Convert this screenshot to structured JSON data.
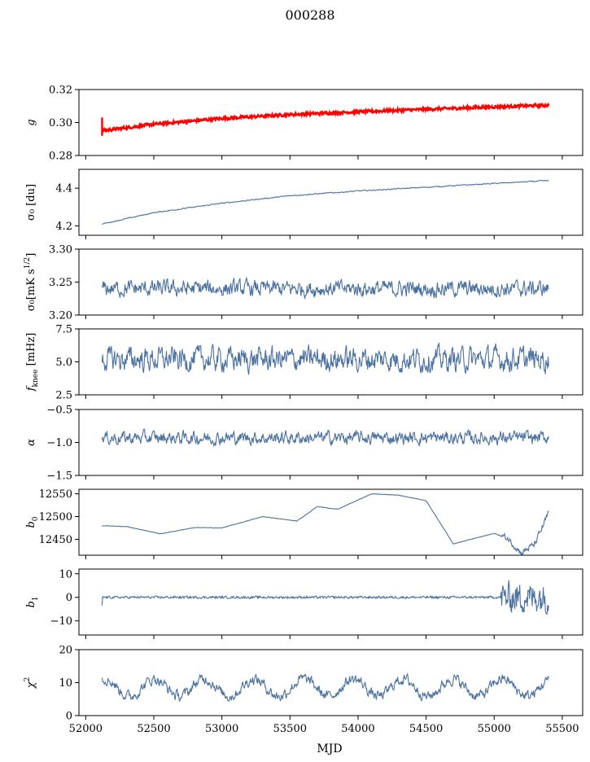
{
  "figure": {
    "title": "000288"
  },
  "colors": {
    "series": "#4c72a0",
    "overlay": "#ff0000",
    "axis": "#000000"
  },
  "chart_data": {
    "type": "line",
    "title": "000288",
    "xlabel": "MJD",
    "xlim": [
      51950,
      55650
    ],
    "xticks": [
      "52000",
      "52500",
      "53000",
      "53500",
      "54000",
      "54500",
      "55000",
      "55500"
    ],
    "x_start": 52120,
    "x_end": 55400,
    "panels": [
      {
        "ylabel_main": "g",
        "ylabel_sub": "",
        "ylim": [
          0.28,
          0.32
        ],
        "yticks": [
          "0.28",
          "0.30",
          "0.32"
        ],
        "key": "g"
      },
      {
        "ylabel_main": "σ₀ [du]",
        "ylabel_sub": "",
        "ylim": [
          4.15,
          4.5
        ],
        "yticks": [
          "4.2",
          "4.4"
        ],
        "key": "sigma_du"
      },
      {
        "ylabel_main": "σ₀[mK s",
        "ylabel_sub": "1/2",
        "ylim": [
          3.2,
          3.3
        ],
        "yticks": [
          "3.20",
          "3.25",
          "3.30"
        ],
        "key": "sigma_mk"
      },
      {
        "ylabel_main": "f",
        "ylabel_sub": "knee",
        "ylim": [
          2.5,
          7.5
        ],
        "yticks": [
          "2.5",
          "5.0",
          "7.5"
        ],
        "key": "fknee"
      },
      {
        "ylabel_main": "α",
        "ylabel_sub": "",
        "ylim": [
          -1.5,
          -0.5
        ],
        "yticks": [
          "−1.5",
          "−1.0",
          "−0.5"
        ],
        "key": "alpha"
      },
      {
        "ylabel_main": "b",
        "ylabel_sub": "0",
        "ylim": [
          12415,
          12560
        ],
        "yticks": [
          "12450",
          "12500",
          "12550"
        ],
        "key": "b0"
      },
      {
        "ylabel_main": "b",
        "ylabel_sub": "1",
        "ylim": [
          -16,
          12
        ],
        "yticks": [
          "−10",
          "0",
          "10"
        ],
        "key": "b1"
      },
      {
        "ylabel_main": "χ",
        "ylabel_sub": "2",
        "ylim": [
          0,
          20
        ],
        "yticks": [
          "0",
          "10",
          "20"
        ],
        "key": "chi2"
      }
    ],
    "series": {
      "g": {
        "name": "",
        "color": "#4c72a0",
        "x": [
          52120,
          52500,
          53000,
          53500,
          54000,
          54500,
          55000,
          55400
        ],
        "values": [
          0.2945,
          0.2985,
          0.302,
          0.305,
          0.3065,
          0.308,
          0.3095,
          0.3105
        ]
      },
      "g_fit": {
        "name": "",
        "color": "#ff0000",
        "x": [
          52120,
          52500,
          53000,
          53500,
          54000,
          54500,
          55000,
          55400
        ],
        "values": [
          0.295,
          0.299,
          0.3025,
          0.3048,
          0.3065,
          0.308,
          0.3095,
          0.3105
        ]
      },
      "sigma_du": {
        "name": "",
        "x": [
          52120,
          52500,
          53000,
          53500,
          54000,
          54500,
          55000,
          55400
        ],
        "values": [
          4.21,
          4.27,
          4.32,
          4.36,
          4.385,
          4.405,
          4.425,
          4.44
        ]
      },
      "sigma_mk": {
        "name": "",
        "mean": 3.24,
        "range": [
          3.21,
          3.27
        ]
      },
      "fknee": {
        "name": "",
        "mean": 5.2,
        "range": [
          3.8,
          7.3
        ]
      },
      "alpha": {
        "name": "",
        "mean": -0.93,
        "range": [
          -1.2,
          -0.82
        ]
      },
      "b0": {
        "name": "",
        "x": [
          52120,
          52300,
          52550,
          52800,
          53000,
          53300,
          53550,
          53700,
          53850,
          54100,
          54300,
          54500,
          54700,
          55000,
          55100,
          55200,
          55300,
          55400
        ],
        "values": [
          12480,
          12478,
          12462,
          12476,
          12475,
          12500,
          12490,
          12522,
          12516,
          12550,
          12547,
          12535,
          12440,
          12463,
          12452,
          12420,
          12440,
          12508
        ]
      },
      "b1": {
        "name": "",
        "mean": 0.0,
        "range": [
          -15,
          11
        ]
      },
      "chi2": {
        "name": "",
        "mean": 8.5,
        "range": [
          2.5,
          15.5
        ],
        "period_days": 365
      }
    }
  }
}
